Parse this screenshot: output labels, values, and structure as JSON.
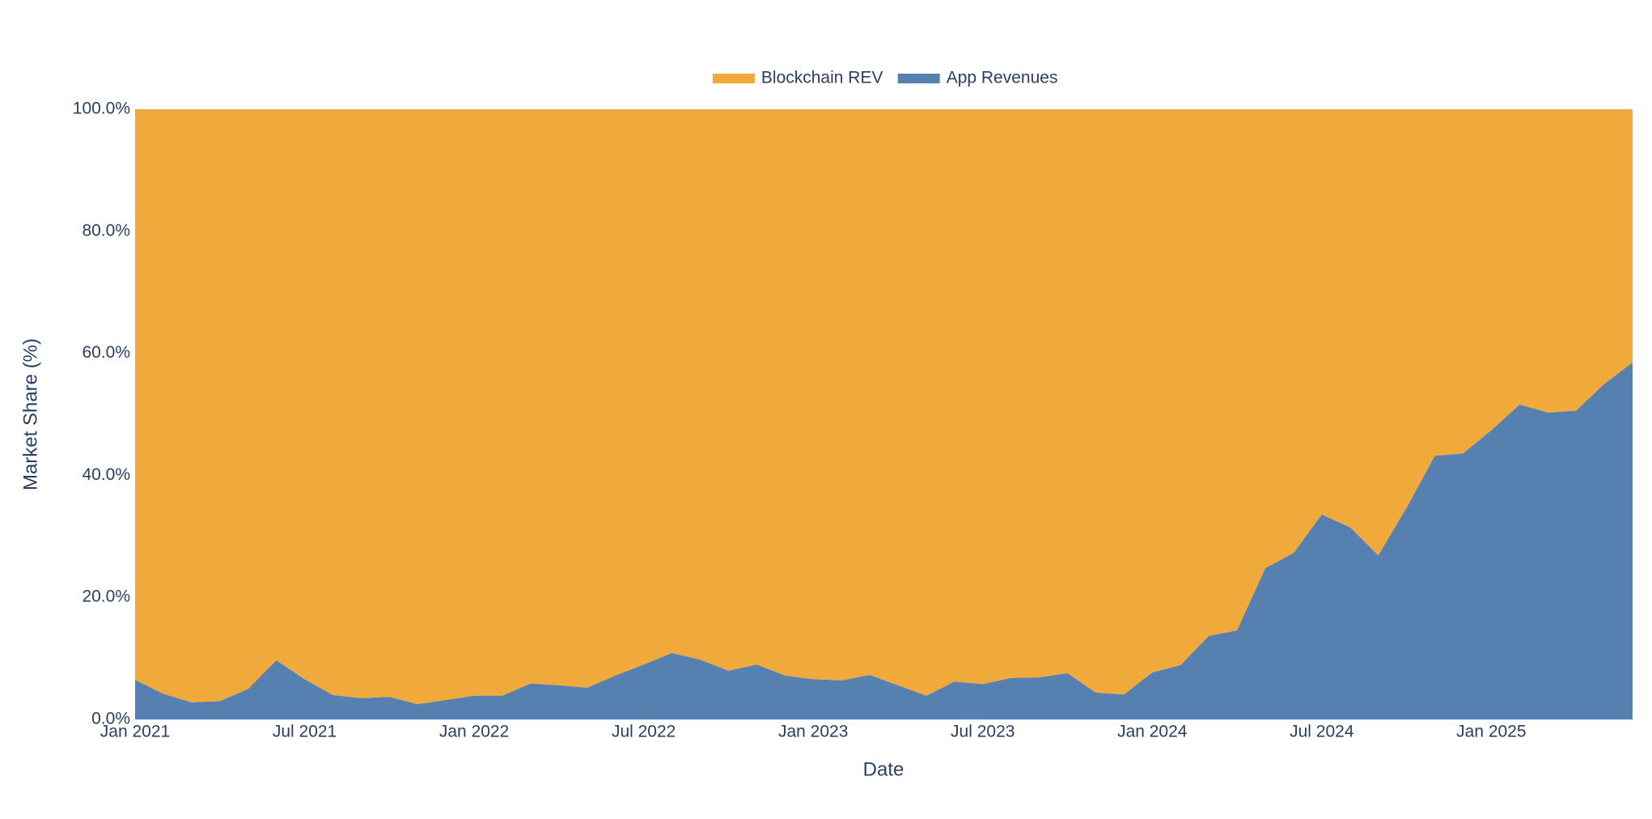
{
  "chart_data": {
    "type": "area",
    "stacked": true,
    "x_label": "Date",
    "y_label": "Market Share (%)",
    "x": [
      "2021-01",
      "2021-02",
      "2021-03",
      "2021-04",
      "2021-05",
      "2021-06",
      "2021-07",
      "2021-08",
      "2021-09",
      "2021-10",
      "2021-11",
      "2021-12",
      "2022-01",
      "2022-02",
      "2022-03",
      "2022-04",
      "2022-05",
      "2022-06",
      "2022-07",
      "2022-08",
      "2022-09",
      "2022-10",
      "2022-11",
      "2022-12",
      "2023-01",
      "2023-02",
      "2023-03",
      "2023-04",
      "2023-05",
      "2023-06",
      "2023-07",
      "2023-08",
      "2023-09",
      "2023-10",
      "2023-11",
      "2023-12",
      "2024-01",
      "2024-02",
      "2024-03",
      "2024-04",
      "2024-05",
      "2024-06",
      "2024-07",
      "2024-08",
      "2024-09",
      "2024-10",
      "2024-11",
      "2024-12",
      "2025-01",
      "2025-02",
      "2025-03",
      "2025-04",
      "2025-05",
      "2025-06"
    ],
    "series": [
      {
        "name": "Blockchain REV",
        "color": "#f0a93b",
        "values": [
          93.5,
          95.8,
          97.2,
          97.0,
          95.0,
          90.3,
          93.4,
          96.0,
          96.5,
          96.3,
          97.5,
          96.8,
          96.1,
          96.1,
          94.1,
          94.4,
          94.8,
          92.8,
          91.0,
          89.1,
          90.2,
          92.0,
          91.0,
          92.8,
          93.4,
          93.6,
          92.7,
          94.4,
          96.1,
          93.8,
          94.2,
          93.2,
          93.1,
          92.4,
          95.6,
          95.9,
          92.3,
          91.1,
          86.3,
          85.4,
          75.2,
          72.7,
          66.4,
          68.5,
          73.1,
          65.3,
          56.8,
          56.4,
          52.6,
          48.4,
          49.7,
          49.4,
          45.0,
          41.5
        ]
      },
      {
        "name": "App Revenues",
        "color": "#5580b0",
        "values": [
          6.5,
          4.2,
          2.8,
          3.0,
          5.0,
          9.7,
          6.6,
          4.0,
          3.5,
          3.7,
          2.5,
          3.2,
          3.9,
          3.9,
          5.9,
          5.6,
          5.2,
          7.2,
          9.0,
          10.9,
          9.8,
          8.0,
          9.0,
          7.2,
          6.6,
          6.4,
          7.3,
          5.6,
          3.9,
          6.2,
          5.8,
          6.8,
          6.9,
          7.6,
          4.4,
          4.1,
          7.7,
          8.9,
          13.7,
          14.6,
          24.8,
          27.3,
          33.6,
          31.5,
          26.9,
          34.7,
          43.2,
          43.6,
          47.4,
          51.6,
          50.3,
          50.6,
          55.0,
          58.5
        ]
      }
    ],
    "xlim": [
      "2021-01",
      "2025-06"
    ],
    "xticks": [
      {
        "value": "2021-01",
        "label": "Jan 2021"
      },
      {
        "value": "2021-07",
        "label": "Jul 2021"
      },
      {
        "value": "2022-01",
        "label": "Jan 2022"
      },
      {
        "value": "2022-07",
        "label": "Jul 2022"
      },
      {
        "value": "2023-01",
        "label": "Jan 2023"
      },
      {
        "value": "2023-07",
        "label": "Jul 2023"
      },
      {
        "value": "2024-01",
        "label": "Jan 2024"
      },
      {
        "value": "2024-07",
        "label": "Jul 2024"
      },
      {
        "value": "2025-01",
        "label": "Jan 2025"
      }
    ],
    "ylim": [
      0,
      100
    ],
    "yticks": [
      {
        "value": 0,
        "label": "0.0%"
      },
      {
        "value": 20,
        "label": "20.0%"
      },
      {
        "value": 40,
        "label": "40.0%"
      },
      {
        "value": 60,
        "label": "60.0%"
      },
      {
        "value": 80,
        "label": "80.0%"
      },
      {
        "value": 100,
        "label": "100.0%"
      }
    ],
    "legend": "top"
  }
}
